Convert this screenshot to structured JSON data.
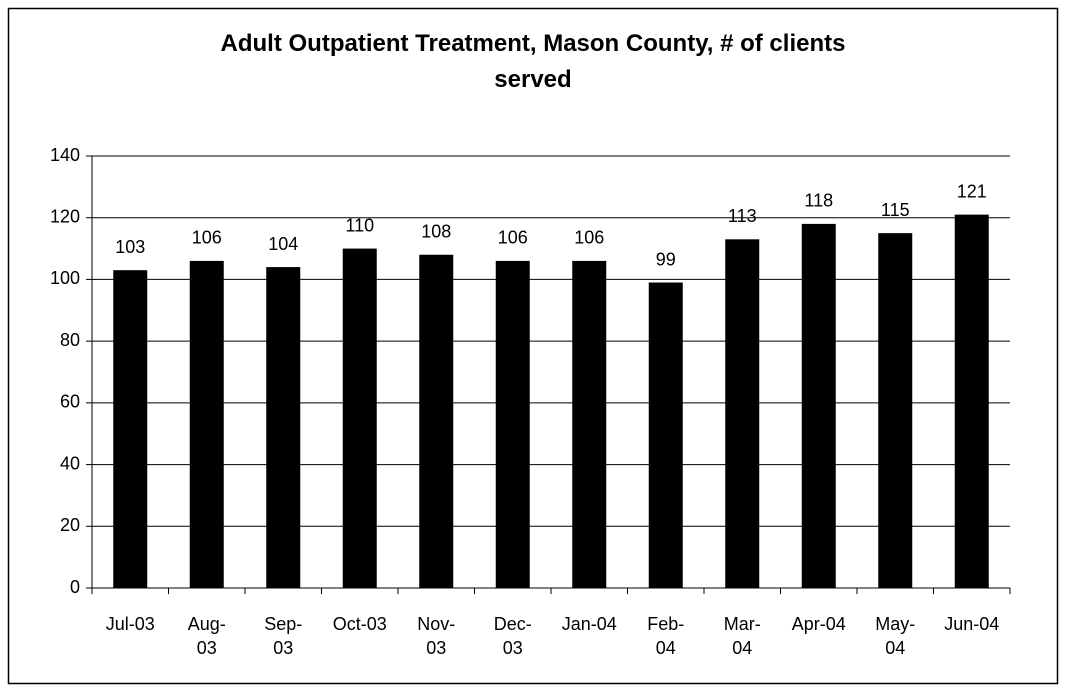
{
  "chart_data": {
    "type": "bar",
    "title": "Adult Outpatient Treatment, Mason County, # of clients served",
    "categories": [
      "Jul-03",
      "Aug-03",
      "Sep-03",
      "Oct-03",
      "Nov-03",
      "Dec-03",
      "Jan-04",
      "Feb-04",
      "Mar-04",
      "Apr-04",
      "May-04",
      "Jun-04"
    ],
    "values": [
      103,
      106,
      104,
      110,
      108,
      106,
      106,
      99,
      113,
      118,
      115,
      121
    ],
    "color": "#000000",
    "ylim": [
      0,
      140
    ],
    "yticks": [
      0,
      20,
      40,
      60,
      80,
      100,
      120,
      140
    ],
    "grid": true
  }
}
